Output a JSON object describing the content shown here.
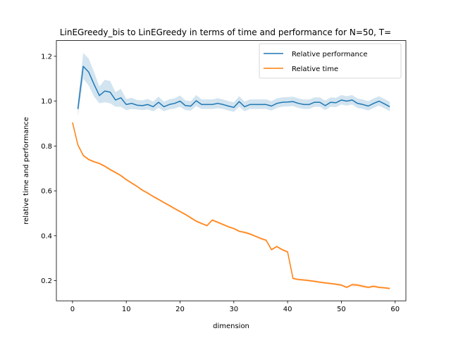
{
  "chart_data": {
    "type": "line",
    "title": "LinEGreedy_bis to LinEGreedy in terms of time and performance for N=50, T=",
    "xlabel": "dimension",
    "ylabel": "relative time and performance",
    "xlim": [
      -3,
      62
    ],
    "ylim": [
      0.11,
      1.27
    ],
    "xticks": [
      0,
      10,
      20,
      30,
      40,
      50,
      60
    ],
    "yticks": [
      0.2,
      0.4,
      0.6,
      0.8,
      1.0,
      1.2
    ],
    "xtick_labels": [
      "0",
      "10",
      "20",
      "30",
      "40",
      "50",
      "60"
    ],
    "ytick_labels": [
      "0.2",
      "0.4",
      "0.6",
      "0.8",
      "1.0",
      "1.2"
    ],
    "legend_position": "top-right",
    "series": [
      {
        "name": "Relative performance",
        "color": "#1f77b4",
        "x": [
          1,
          2,
          3,
          4,
          5,
          6,
          7,
          8,
          9,
          10,
          11,
          12,
          13,
          14,
          15,
          16,
          17,
          18,
          19,
          20,
          21,
          22,
          23,
          24,
          25,
          26,
          27,
          28,
          29,
          30,
          31,
          32,
          33,
          34,
          35,
          36,
          37,
          38,
          39,
          40,
          41,
          42,
          43,
          44,
          45,
          46,
          47,
          48,
          49,
          50,
          51,
          52,
          53,
          54,
          55,
          56,
          57,
          58,
          59
        ],
        "y": [
          0.965,
          1.155,
          1.13,
          1.075,
          1.025,
          1.045,
          1.04,
          1.005,
          1.015,
          0.985,
          0.99,
          0.982,
          0.98,
          0.985,
          0.975,
          0.995,
          0.975,
          0.985,
          0.99,
          1.0,
          0.98,
          0.978,
          1.002,
          0.985,
          0.985,
          0.985,
          0.99,
          0.985,
          0.978,
          0.972,
          0.998,
          0.975,
          0.985,
          0.985,
          0.985,
          0.985,
          0.978,
          0.99,
          0.995,
          0.996,
          0.998,
          0.99,
          0.985,
          0.985,
          0.995,
          0.995,
          0.98,
          0.995,
          0.993,
          1.005,
          1.0,
          1.005,
          0.99,
          0.985,
          0.978,
          0.99,
          1.0,
          0.988,
          0.975
        ],
        "lower": [
          0.93,
          1.1,
          1.07,
          1.02,
          0.99,
          0.995,
          0.99,
          0.975,
          0.975,
          0.96,
          0.965,
          0.963,
          0.96,
          0.963,
          0.955,
          0.97,
          0.955,
          0.963,
          0.967,
          0.975,
          0.96,
          0.958,
          0.978,
          0.965,
          0.965,
          0.965,
          0.968,
          0.965,
          0.958,
          0.952,
          0.975,
          0.955,
          0.965,
          0.965,
          0.965,
          0.965,
          0.958,
          0.97,
          0.975,
          0.976,
          0.978,
          0.97,
          0.965,
          0.965,
          0.975,
          0.975,
          0.96,
          0.975,
          0.973,
          0.985,
          0.98,
          0.985,
          0.97,
          0.965,
          0.958,
          0.97,
          0.98,
          0.968,
          0.955
        ],
        "upper": [
          1.0,
          1.215,
          1.19,
          1.13,
          1.065,
          1.095,
          1.09,
          1.04,
          1.055,
          1.01,
          1.015,
          1.005,
          1.003,
          1.01,
          0.998,
          1.02,
          0.998,
          1.008,
          1.013,
          1.025,
          1.003,
          1.0,
          1.027,
          1.008,
          1.008,
          1.008,
          1.013,
          1.008,
          1.0,
          0.995,
          1.022,
          0.998,
          1.008,
          1.008,
          1.008,
          1.008,
          1.0,
          1.012,
          1.017,
          1.018,
          1.02,
          1.012,
          1.007,
          1.007,
          1.017,
          1.017,
          1.002,
          1.017,
          1.015,
          1.027,
          1.022,
          1.027,
          1.012,
          1.007,
          1.0,
          1.012,
          1.022,
          1.01,
          0.997
        ]
      },
      {
        "name": "Relative time",
        "color": "#ff7f0e",
        "x": [
          0,
          1,
          2,
          3,
          4,
          5,
          6,
          7,
          8,
          9,
          10,
          11,
          12,
          13,
          14,
          15,
          16,
          17,
          18,
          19,
          20,
          21,
          22,
          23,
          24,
          25,
          26,
          27,
          28,
          29,
          30,
          31,
          32,
          33,
          34,
          35,
          36,
          37,
          38,
          39,
          40,
          41,
          42,
          43,
          44,
          45,
          46,
          47,
          48,
          49,
          50,
          51,
          52,
          53,
          54,
          55,
          56,
          57,
          58,
          59
        ],
        "y": [
          0.905,
          0.805,
          0.758,
          0.74,
          0.73,
          0.722,
          0.71,
          0.695,
          0.682,
          0.668,
          0.65,
          0.635,
          0.62,
          0.603,
          0.59,
          0.575,
          0.562,
          0.548,
          0.535,
          0.521,
          0.508,
          0.495,
          0.48,
          0.465,
          0.455,
          0.445,
          0.47,
          0.46,
          0.45,
          0.44,
          0.432,
          0.42,
          0.415,
          0.408,
          0.398,
          0.388,
          0.38,
          0.338,
          0.352,
          0.338,
          0.328,
          0.21,
          0.205,
          0.203,
          0.2,
          0.197,
          0.193,
          0.19,
          0.187,
          0.184,
          0.18,
          0.17,
          0.182,
          0.18,
          0.175,
          0.17,
          0.175,
          0.17,
          0.168,
          0.165
        ],
        "lower": [
          0.9,
          0.8,
          0.753,
          0.735,
          0.725,
          0.717,
          0.705,
          0.69,
          0.677,
          0.663,
          0.645,
          0.63,
          0.615,
          0.598,
          0.585,
          0.57,
          0.557,
          0.543,
          0.53,
          0.516,
          0.503,
          0.49,
          0.475,
          0.46,
          0.45,
          0.44,
          0.465,
          0.455,
          0.445,
          0.435,
          0.427,
          0.415,
          0.41,
          0.403,
          0.393,
          0.383,
          0.375,
          0.333,
          0.347,
          0.333,
          0.323,
          0.205,
          0.2,
          0.198,
          0.195,
          0.192,
          0.188,
          0.185,
          0.182,
          0.179,
          0.175,
          0.165,
          0.175,
          0.173,
          0.168,
          0.165,
          0.169,
          0.165,
          0.163,
          0.16
        ],
        "upper": [
          0.91,
          0.81,
          0.763,
          0.745,
          0.735,
          0.727,
          0.715,
          0.7,
          0.687,
          0.673,
          0.655,
          0.64,
          0.625,
          0.608,
          0.595,
          0.58,
          0.567,
          0.553,
          0.54,
          0.526,
          0.513,
          0.5,
          0.485,
          0.47,
          0.46,
          0.45,
          0.475,
          0.465,
          0.455,
          0.445,
          0.437,
          0.425,
          0.42,
          0.413,
          0.403,
          0.393,
          0.385,
          0.343,
          0.357,
          0.343,
          0.333,
          0.215,
          0.21,
          0.208,
          0.205,
          0.202,
          0.198,
          0.195,
          0.192,
          0.189,
          0.185,
          0.175,
          0.188,
          0.187,
          0.182,
          0.175,
          0.181,
          0.175,
          0.173,
          0.17
        ]
      }
    ]
  }
}
